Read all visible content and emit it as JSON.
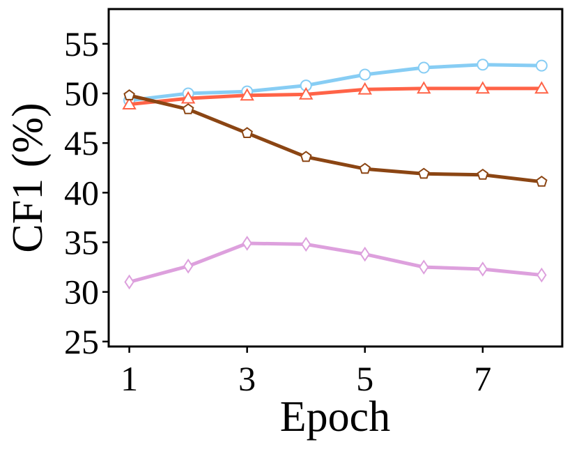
{
  "chart_data": {
    "type": "line",
    "xlabel": "Epoch",
    "ylabel": "CF1 (%)",
    "xlim": [
      0.65,
      8.35
    ],
    "ylim": [
      24.5,
      58.5
    ],
    "xticks": [
      1,
      3,
      5,
      7
    ],
    "yticks": [
      25,
      30,
      35,
      40,
      45,
      50,
      55
    ],
    "grid": false,
    "x": [
      1,
      2,
      3,
      4,
      5,
      6,
      7,
      8
    ],
    "series": [
      {
        "color": "#87cdf4",
        "marker": "circle",
        "values": [
          49.3,
          50.0,
          50.2,
          50.8,
          51.9,
          52.6,
          52.9,
          52.8
        ]
      },
      {
        "color": "#ff6347",
        "marker": "triangle",
        "values": [
          48.9,
          49.5,
          49.8,
          49.9,
          50.4,
          50.5,
          50.5,
          50.5
        ]
      },
      {
        "color": "#8b4513",
        "marker": "pentagon",
        "values": [
          49.8,
          48.4,
          46.0,
          43.6,
          42.4,
          41.9,
          41.8,
          41.1
        ]
      },
      {
        "color": "#dda0dd",
        "marker": "diamond",
        "values": [
          31.0,
          32.6,
          34.9,
          34.8,
          33.8,
          32.5,
          32.3,
          31.7
        ]
      }
    ]
  }
}
